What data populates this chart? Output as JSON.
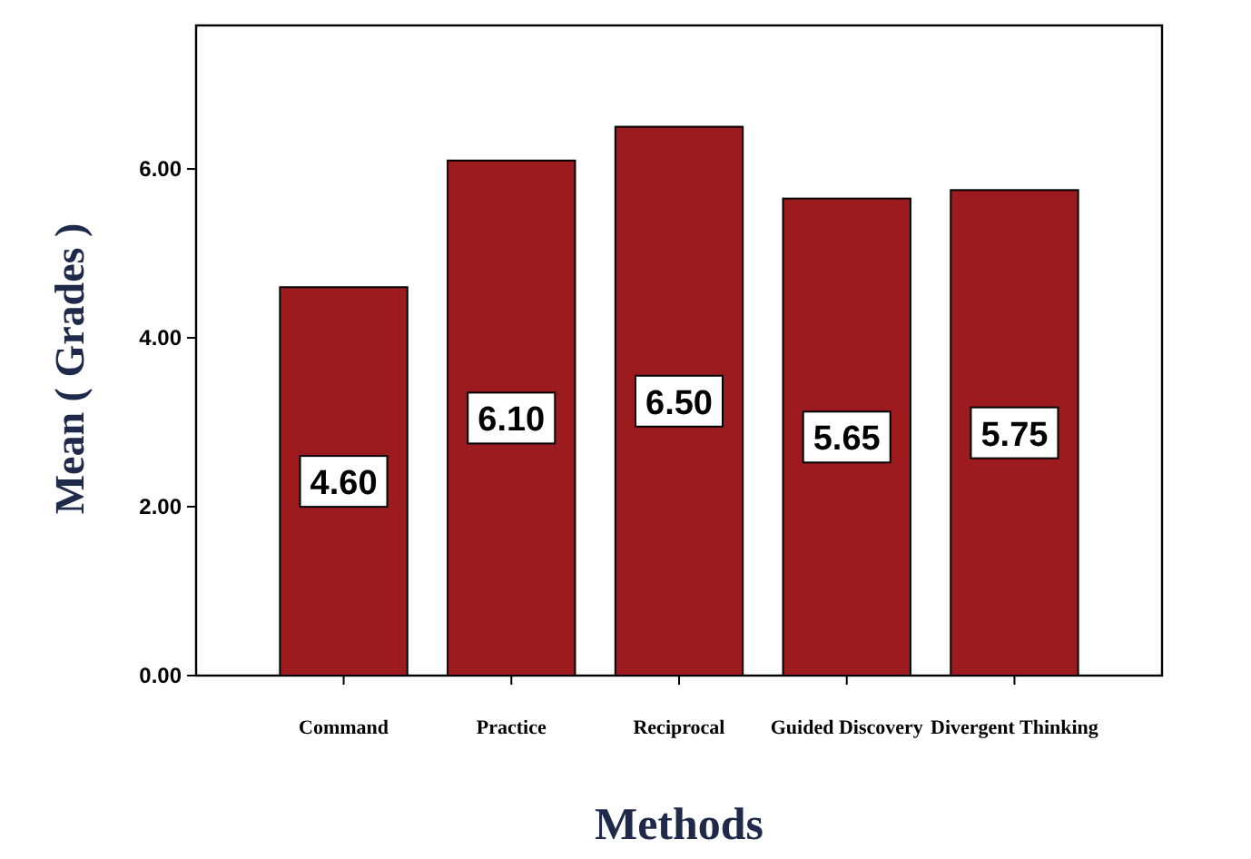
{
  "chart_data": {
    "type": "bar",
    "xlabel": "Methods",
    "ylabel": "Mean ( Grades )",
    "categories": [
      "Command",
      "Practice",
      "Reciprocal",
      "Guided Discovery",
      "Divergent Thinking"
    ],
    "values": [
      4.6,
      6.1,
      6.5,
      5.65,
      5.75
    ],
    "color": "#9b1b1e",
    "ylim": [
      0,
      7.7
    ],
    "yticks": [
      {
        "value": 0,
        "label": "0.00"
      },
      {
        "value": 2,
        "label": "2.00"
      },
      {
        "value": 4,
        "label": "4.00"
      },
      {
        "value": 6,
        "label": "6.00"
      }
    ],
    "value_labels": [
      "4.60",
      "6.10",
      "6.50",
      "5.65",
      "5.75"
    ],
    "grid": false
  }
}
